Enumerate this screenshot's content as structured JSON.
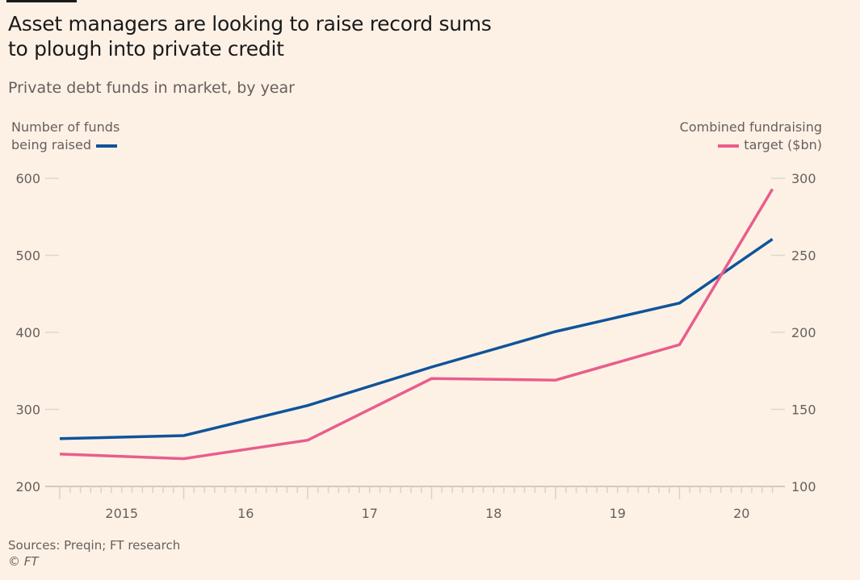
{
  "header": {
    "title_line1": "Asset managers are looking to raise record sums",
    "title_line2": "to plough into private credit",
    "subtitle": "Private debt funds in market, by year"
  },
  "legend": {
    "left_line1": "Number of funds",
    "left_line2": "being raised",
    "right_line1": "Combined fundraising",
    "right_line2": "target ($bn)"
  },
  "footer": {
    "source": "Sources: Preqin; FT research",
    "copyright": "© FT"
  },
  "chart_data": {
    "type": "line",
    "title": "Asset managers are looking to raise record sums to plough into private credit",
    "subtitle": "Private debt funds in market, by year",
    "x": [
      2015.0,
      2016.0,
      2017.0,
      2018.0,
      2019.0,
      2020.0,
      2020.75
    ],
    "x_ticks": [
      2015.5,
      2016.5,
      2017.5,
      2018.5,
      2019.5,
      2020.5
    ],
    "x_tick_labels": [
      "2015",
      "16",
      "17",
      "18",
      "19",
      "20"
    ],
    "xlim": [
      2015.0,
      2020.85
    ],
    "left_axis": {
      "label": "Number of funds being raised",
      "ylim": [
        200,
        600
      ],
      "ticks": [
        200,
        300,
        400,
        500,
        600
      ]
    },
    "right_axis": {
      "label": "Combined fundraising target ($bn)",
      "ylim": [
        100,
        300
      ],
      "ticks": [
        100,
        150,
        200,
        250,
        300
      ]
    },
    "series": [
      {
        "name": "Number of funds being raised",
        "axis": "left",
        "color": "#0f5499",
        "values": [
          262,
          266,
          305,
          355,
          401,
          438,
          521
        ]
      },
      {
        "name": "Combined fundraising target ($bn)",
        "axis": "right",
        "color": "#e95d8c",
        "values": [
          121,
          118,
          130,
          170,
          169,
          192,
          293
        ]
      }
    ],
    "grid": false,
    "legend_position": "top-left and top-right"
  }
}
